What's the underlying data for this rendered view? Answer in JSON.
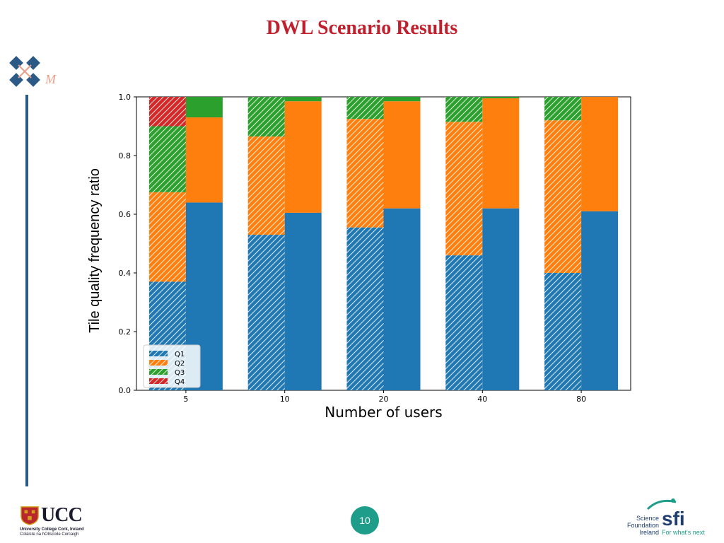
{
  "slide": {
    "title": "DWL Scenario Results",
    "page_number": "10"
  },
  "branding": {
    "left_logo_letter": "M",
    "ucc": {
      "title": "UCC",
      "line1": "University College Cork, Ireland",
      "line2": "Coláiste na hOllscoile Corcaigh"
    },
    "sfi": {
      "line1": "Science",
      "line2": "Foundation",
      "line3": "Ireland",
      "mark": "sfi",
      "tagline": "For what's next"
    }
  },
  "colors": {
    "title": "#c0202d",
    "accent_bar": "#2c5a86",
    "page_badge": "#1e9d8a",
    "Q1": "#1f77b4",
    "Q2": "#ff7f0e",
    "Q3": "#2ca02c",
    "Q4": "#d62728"
  },
  "chart_data": {
    "type": "bar",
    "stacked": true,
    "xlabel": "Number of users",
    "ylabel": "Tile quality frequency ratio",
    "ylim": [
      0,
      1.0
    ],
    "yticks": [
      "0.0",
      "0.2",
      "0.4",
      "0.6",
      "0.8",
      "1.0"
    ],
    "categories": [
      "5",
      "10",
      "20",
      "40",
      "80"
    ],
    "legend": {
      "position": "lower-left",
      "entries": [
        "Q1",
        "Q2",
        "Q3",
        "Q4"
      ]
    },
    "groups": [
      {
        "style": "hatched",
        "series": [
          {
            "name": "Q1",
            "values": [
              0.37,
              0.53,
              0.555,
              0.46,
              0.4
            ]
          },
          {
            "name": "Q2",
            "values": [
              0.305,
              0.335,
              0.37,
              0.455,
              0.52
            ]
          },
          {
            "name": "Q3",
            "values": [
              0.225,
              0.135,
              0.075,
              0.085,
              0.08
            ]
          },
          {
            "name": "Q4",
            "values": [
              0.1,
              0.0,
              0.0,
              0.0,
              0.0
            ]
          }
        ]
      },
      {
        "style": "solid",
        "series": [
          {
            "name": "Q1",
            "values": [
              0.64,
              0.605,
              0.62,
              0.62,
              0.61
            ]
          },
          {
            "name": "Q2",
            "values": [
              0.29,
              0.38,
              0.365,
              0.375,
              0.39
            ]
          },
          {
            "name": "Q3",
            "values": [
              0.07,
              0.015,
              0.015,
              0.005,
              0.0
            ]
          },
          {
            "name": "Q4",
            "values": [
              0.0,
              0.0,
              0.0,
              0.0,
              0.0
            ]
          }
        ]
      }
    ]
  }
}
